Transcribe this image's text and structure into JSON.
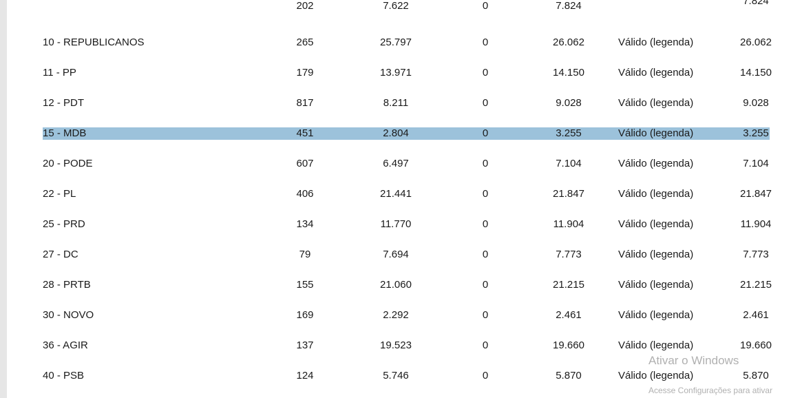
{
  "table": {
    "top_partial_row": {
      "n1": "202",
      "n2": "7.622",
      "n3": "0",
      "n4": "7.824",
      "n5": "7.824"
    },
    "rows": [
      {
        "name": "10 - REPUBLICANOS",
        "n1": "265",
        "n2": "25.797",
        "n3": "0",
        "n4": "26.062",
        "status": "Válido (legenda)",
        "n5": "26.062"
      },
      {
        "name": "11 - PP",
        "n1": "179",
        "n2": "13.971",
        "n3": "0",
        "n4": "14.150",
        "status": "Válido (legenda)",
        "n5": "14.150"
      },
      {
        "name": "12 - PDT",
        "n1": "817",
        "n2": "8.211",
        "n3": "0",
        "n4": "9.028",
        "status": "Válido (legenda)",
        "n5": "9.028"
      },
      {
        "name": "15 - MDB",
        "n1": "451",
        "n2": "2.804",
        "n3": "0",
        "n4": "3.255",
        "status": "Válido (legenda)",
        "n5": "3.255",
        "selected": true
      },
      {
        "name": "20 - PODE",
        "n1": "607",
        "n2": "6.497",
        "n3": "0",
        "n4": "7.104",
        "status": "Válido (legenda)",
        "n5": "7.104"
      },
      {
        "name": "22 - PL",
        "n1": "406",
        "n2": "21.441",
        "n3": "0",
        "n4": "21.847",
        "status": "Válido (legenda)",
        "n5": "21.847"
      },
      {
        "name": "25 - PRD",
        "n1": "134",
        "n2": "11.770",
        "n3": "0",
        "n4": "11.904",
        "status": "Válido (legenda)",
        "n5": "11.904"
      },
      {
        "name": "27 - DC",
        "n1": "79",
        "n2": "7.694",
        "n3": "0",
        "n4": "7.773",
        "status": "Válido (legenda)",
        "n5": "7.773"
      },
      {
        "name": "28 - PRTB",
        "n1": "155",
        "n2": "21.060",
        "n3": "0",
        "n4": "21.215",
        "status": "Válido (legenda)",
        "n5": "21.215"
      },
      {
        "name": "30 - NOVO",
        "n1": "169",
        "n2": "2.292",
        "n3": "0",
        "n4": "2.461",
        "status": "Válido (legenda)",
        "n5": "2.461"
      },
      {
        "name": "36 - AGIR",
        "n1": "137",
        "n2": "19.523",
        "n3": "0",
        "n4": "19.660",
        "status": "Válido (legenda)",
        "n5": "19.660"
      },
      {
        "name": "40 - PSB",
        "n1": "124",
        "n2": "5.746",
        "n3": "0",
        "n4": "5.870",
        "status": "Válido (legenda)",
        "n5": "5.870"
      }
    ]
  },
  "watermark": {
    "title": "Ativar o Windows",
    "subtitle": "Acesse Configurações para ativar"
  },
  "colors": {
    "selection": "#9cc2db"
  }
}
